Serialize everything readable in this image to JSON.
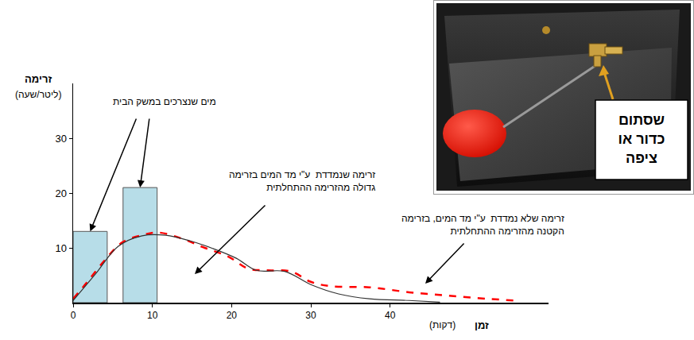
{
  "chart_data": {
    "type": "combo",
    "xlabel": "זמן",
    "xlabel_unit": "(דקות)",
    "ylabel": "זרימה",
    "ylabel_unit": "(ליטר/שעה)",
    "xlim": [
      0,
      60
    ],
    "xticks": [
      0,
      10,
      20,
      30,
      40
    ],
    "ylim": [
      0,
      40
    ],
    "yticks": [
      10,
      20,
      30
    ],
    "grid": false,
    "series": [
      {
        "type": "bar",
        "color": "#b7dde8",
        "x_start": [
          0,
          6.3
        ],
        "x_end": [
          4.3,
          10.6
        ],
        "values": [
          13,
          21
        ]
      },
      {
        "type": "line",
        "color": "#ff0000",
        "line_style": "dashed",
        "x": [
          0,
          1.8,
          3.8,
          6.2,
          8.7,
          10.7,
          13.7,
          16.6,
          19.6,
          22.1,
          24.5,
          27.5,
          30,
          32.5,
          37.4,
          42.4,
          47.3,
          52.3,
          55.7
        ],
        "values": [
          0.7,
          3.8,
          7.4,
          11,
          12.3,
          12.8,
          11.7,
          10,
          8.4,
          6.2,
          5.9,
          5.7,
          3.8,
          3,
          2.8,
          1.9,
          1.3,
          0.7,
          0.4
        ]
      },
      {
        "type": "line",
        "color": "#333333",
        "line_style": "solid",
        "x": [
          0,
          2.8,
          5.7,
          8.7,
          11.7,
          14.7,
          17.6,
          20.6,
          23.1,
          26.7,
          30,
          33.5,
          37.4,
          42.4,
          46.3
        ],
        "values": [
          0.4,
          5.2,
          10.3,
          12.2,
          12.3,
          11.3,
          9.9,
          8.1,
          5.9,
          5.7,
          3.3,
          1.6,
          0.7,
          0.4,
          0.1
        ]
      }
    ],
    "annotations": [
      {
        "text": [
          "מים שנצרכים במשק הבית"
        ]
      },
      {
        "text": [
          "זרימה שנמדדת  ע\"י מד המים בזרימה",
          "גדולה מהזרימה ההתחלתית"
        ]
      },
      {
        "text": [
          "זרימה שלא נמדדת  ע\"י מד המים, בזרימה",
          "הקטנה מהזרימה ההתחלתית"
        ]
      }
    ],
    "inset": {
      "label": [
        "שסתום",
        "כדור או",
        "ציפה"
      ]
    }
  }
}
